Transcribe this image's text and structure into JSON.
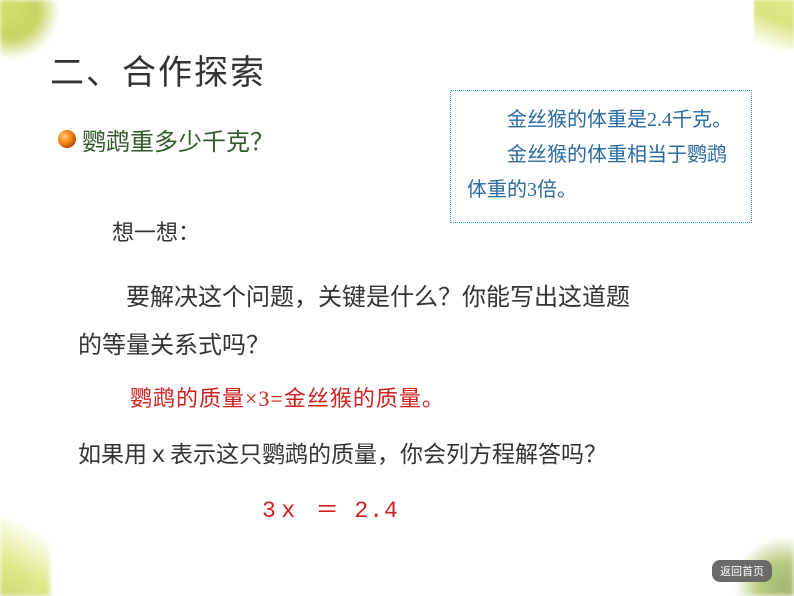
{
  "title": "二、合作探索",
  "question": "鹦鹉重多少千克？",
  "info": {
    "line1": "金丝猴的体重是2.4千克。",
    "line2": "金丝猴的体重相当于鹦鹉体重的3倍。",
    "border_color": "#2aa0c8",
    "text_color": "#2a6aa0"
  },
  "think_label": "想一想：",
  "body1_l1": "要解决这个问题，关键是什么？你能写出这道题",
  "body1_l2": "的等量关系式吗？",
  "equation_rel": "鹦鹉的质量×3=金丝猴的质量。",
  "body2": "如果用ｘ表示这只鹦鹉的质量，你会列方程解答吗？",
  "equation_form": "3ｘ ＝ 2.4",
  "back_label": "返回首页",
  "colors": {
    "title": "#333333",
    "question": "#325a2a",
    "body": "#333333",
    "equation": "#d02020",
    "accent_green": "#c9d94a",
    "bullet_gradient": [
      "#ffd080",
      "#ff8c1a",
      "#cc4400"
    ],
    "back_bg": "#6a6a6a"
  },
  "fontsizes": {
    "title": 34,
    "question": 24,
    "info": 20,
    "body": 24,
    "equation": 22
  }
}
